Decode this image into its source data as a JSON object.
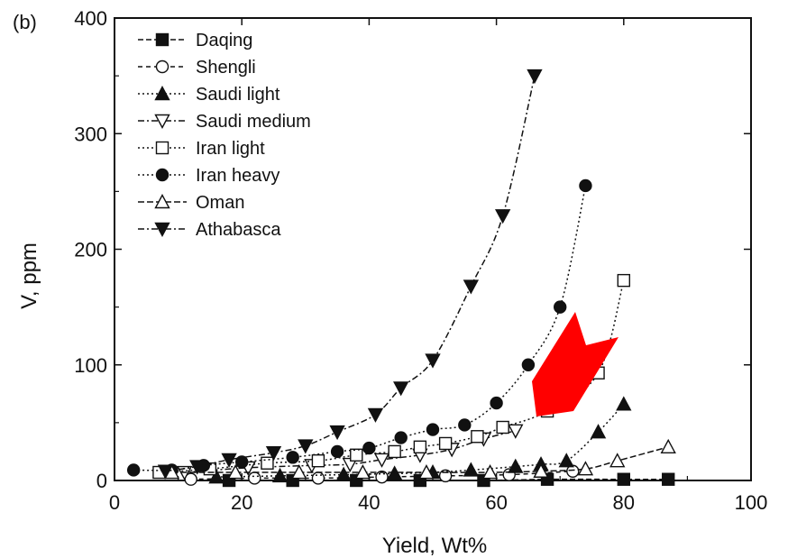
{
  "panel_label": "(b)",
  "colors": {
    "ink": "#111111",
    "arrow": "#ff0000"
  },
  "chart_data": {
    "type": "line",
    "xlabel": "Yield, Wt%",
    "ylabel": "V, ppm",
    "xlim": [
      0,
      100
    ],
    "ylim": [
      0,
      400
    ],
    "xticks": [
      "0",
      "20",
      "40",
      "60",
      "80",
      "100"
    ],
    "yticks": [
      "0",
      "100",
      "200",
      "300",
      "400"
    ],
    "grid": false,
    "legend": "top-left",
    "series": [
      {
        "name": "Daqing",
        "marker": "square-filled",
        "dash": "6,3",
        "x": [
          18,
          28,
          38,
          48,
          58,
          68,
          80,
          87
        ],
        "y": [
          0,
          0,
          0,
          0,
          0,
          1,
          1,
          1
        ]
      },
      {
        "name": "Shengli",
        "marker": "circle-open",
        "dash": "5,4",
        "x": [
          12,
          22,
          32,
          42,
          52,
          62,
          72
        ],
        "y": [
          1,
          2,
          2,
          3,
          4,
          5,
          8
        ]
      },
      {
        "name": "Saudi light",
        "marker": "triangle-up-filled",
        "dash": "2,3",
        "x": [
          16,
          26,
          36,
          44,
          50,
          56,
          63,
          67,
          71,
          76,
          80
        ],
        "y": [
          3,
          4,
          5,
          6,
          7,
          9,
          12,
          14,
          17,
          42,
          66
        ]
      },
      {
        "name": "Saudi medium",
        "marker": "triangle-down-open",
        "dash": "7,3,2,3",
        "x": [
          11,
          21,
          31,
          37,
          42,
          48,
          53,
          58,
          63
        ],
        "y": [
          7,
          11,
          13,
          14,
          18,
          22,
          27,
          36,
          43
        ]
      },
      {
        "name": "Iran light",
        "marker": "square-open",
        "dash": "2,3",
        "x": [
          7,
          15,
          24,
          32,
          38,
          44,
          48,
          52,
          57,
          61,
          68,
          76,
          80
        ],
        "y": [
          7,
          10,
          15,
          17,
          22,
          25,
          29,
          32,
          38,
          46,
          60,
          93,
          173
        ]
      },
      {
        "name": "Iran heavy",
        "marker": "circle-filled",
        "dash": "2,3",
        "x": [
          3,
          9,
          14,
          20,
          28,
          35,
          40,
          45,
          50,
          55,
          60,
          65,
          70,
          74
        ],
        "y": [
          9,
          9,
          13,
          16,
          20,
          25,
          28,
          37,
          44,
          48,
          67,
          100,
          150,
          255
        ]
      },
      {
        "name": "Oman",
        "marker": "triangle-up-open",
        "dash": "7,3",
        "x": [
          9,
          19,
          29,
          39,
          49,
          59,
          67,
          74,
          79,
          87
        ],
        "y": [
          7,
          7,
          7,
          7,
          7,
          7,
          8,
          10,
          17,
          29
        ]
      },
      {
        "name": "Athabasca",
        "marker": "triangle-down-filled",
        "dash": "7,3,2,3",
        "x": [
          8,
          13,
          18,
          25,
          30,
          35,
          41,
          45,
          50,
          56,
          61,
          66
        ],
        "y": [
          8,
          12,
          18,
          24,
          30,
          42,
          57,
          80,
          104,
          168,
          229,
          350
        ]
      }
    ]
  }
}
